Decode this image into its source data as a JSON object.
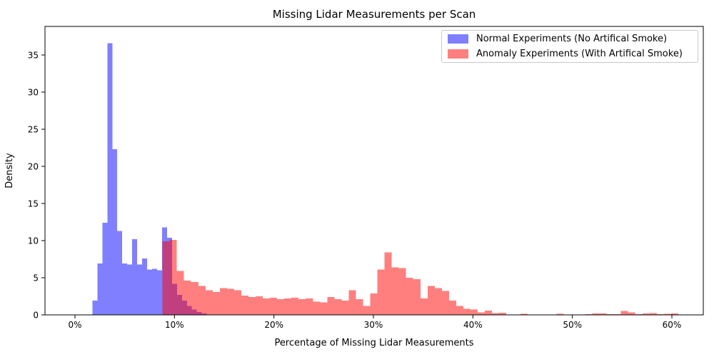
{
  "chart_data": {
    "type": "histogram",
    "title": "Missing Lidar Measurements per Scan",
    "xlabel": "Percentage of Missing Lidar Measurements",
    "ylabel": "Density",
    "x_axis": {
      "unit": "percent",
      "tick_positions": [
        0,
        10,
        20,
        30,
        40,
        50,
        60
      ],
      "tick_labels": [
        "0%",
        "10%",
        "20%",
        "30%",
        "40%",
        "50%",
        "60%"
      ],
      "range_percent": [
        -3.0,
        63.2
      ],
      "grid": false
    },
    "y_axis": {
      "tick_values": [
        0,
        5,
        10,
        15,
        20,
        25,
        30,
        35
      ],
      "tick_labels": [
        "0",
        "5",
        "10",
        "15",
        "20",
        "25",
        "30",
        "35"
      ],
      "range": [
        0,
        38.8
      ],
      "grid": false
    },
    "series": [
      {
        "name": "Normal Experiments (No Artifical Smoke)",
        "color": "#0000ff",
        "opacity": 0.5,
        "blended_color_on_white": "#7f7fff",
        "bin_start_percent": 1.75,
        "bin_width_percent": 0.5,
        "densities": [
          1.9,
          6.9,
          12.4,
          36.6,
          22.3,
          11.3,
          6.9,
          6.8,
          10.2,
          6.8,
          7.6,
          6.1,
          6.2,
          6.0,
          11.8,
          10.4,
          4.2,
          2.7,
          1.9,
          1.2,
          0.7,
          0.4,
          0.2
        ]
      },
      {
        "name": "Anomaly Experiments (With Artifical Smoke)",
        "color": "#ff0000",
        "opacity": 0.5,
        "blended_color_on_white": "#ff7f7f",
        "bin_start_percent": 8.8,
        "bin_width_percent": 0.72,
        "densities": [
          9.9,
          10.1,
          5.9,
          4.6,
          4.4,
          3.9,
          3.3,
          3.1,
          3.6,
          3.5,
          3.3,
          2.6,
          2.4,
          2.5,
          2.2,
          2.3,
          2.1,
          2.2,
          2.3,
          2.1,
          2.2,
          1.8,
          1.7,
          2.4,
          2.1,
          1.9,
          3.3,
          2.1,
          1.2,
          2.9,
          6.1,
          8.4,
          6.4,
          6.3,
          5.0,
          4.8,
          2.2,
          3.9,
          3.6,
          3.2,
          1.9,
          1.2,
          0.8,
          0.7,
          0.35,
          0.6,
          0.25,
          0.3,
          0.05,
          0,
          0.15,
          0,
          0,
          0.05,
          0,
          0.15,
          0.05,
          0,
          0.05,
          0.1,
          0.2,
          0.2,
          0.1,
          0.1,
          0.55,
          0.35,
          0.1,
          0.2,
          0.25,
          0.1,
          0.15,
          0.2
        ]
      }
    ],
    "overlap_blend_color": "#bf3f7f",
    "legend_position": "upper right"
  },
  "legend": {
    "items": [
      {
        "label": "Normal Experiments (No Artifical Smoke)",
        "swatch_color": "#7f7fff"
      },
      {
        "label": "Anomaly Experiments (With Artifical Smoke)",
        "swatch_color": "#ff7f7f"
      }
    ]
  }
}
